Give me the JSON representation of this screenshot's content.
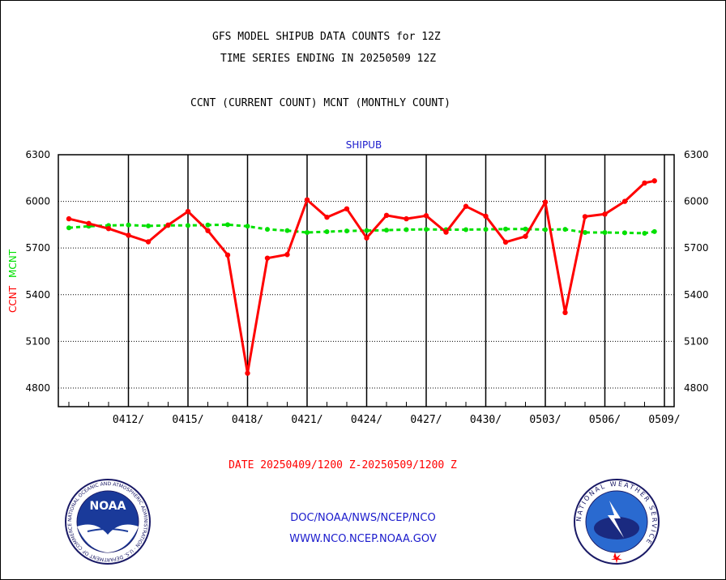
{
  "header": {
    "line1": "GFS MODEL SHIPUB DATA COUNTS for 12Z",
    "line2": "TIME SERIES ENDING IN 20250509 12Z",
    "line3": "CCNT (CURRENT COUNT) MCNT (MONTHLY COUNT)"
  },
  "chart_data": {
    "type": "line",
    "title": "SHIPUB",
    "ylabel_ccnt": "CCNT",
    "ylabel_mcnt": "MCNT",
    "xlabel": "DATE 20250409/1200 Z-20250509/1200 Z",
    "ylim": [
      4680,
      6300
    ],
    "yticks": [
      4800,
      5100,
      5400,
      5700,
      6000,
      6300
    ],
    "xlim": [
      0,
      30
    ],
    "xticks": [
      {
        "x": 3,
        "label": "0412/"
      },
      {
        "x": 6,
        "label": "0415/"
      },
      {
        "x": 9,
        "label": "0418/"
      },
      {
        "x": 12,
        "label": "0421/"
      },
      {
        "x": 15,
        "label": "0424/"
      },
      {
        "x": 18,
        "label": "0427/"
      },
      {
        "x": 21,
        "label": "0430/"
      },
      {
        "x": 24,
        "label": "0503/"
      },
      {
        "x": 27,
        "label": "0506/"
      },
      {
        "x": 30,
        "label": "0509/"
      }
    ],
    "grid": true,
    "colors": {
      "ccnt": "#ff0000",
      "mcnt": "#00e000",
      "title": "#1a1acc"
    },
    "series": [
      {
        "name": "CCNT",
        "x": [
          0,
          1,
          2,
          3,
          4,
          5,
          6,
          7,
          8,
          9,
          10,
          11,
          12,
          13,
          14,
          15,
          16,
          17,
          18,
          19,
          20,
          21,
          22,
          23,
          24,
          25,
          26,
          27,
          28,
          29,
          29.5
        ],
        "values": [
          5888,
          5858,
          5825,
          5782,
          5740,
          5848,
          5935,
          5812,
          5655,
          4895,
          5635,
          5658,
          6010,
          5898,
          5952,
          5765,
          5910,
          5888,
          5908,
          5802,
          5968,
          5905,
          5738,
          5775,
          5995,
          5285,
          5902,
          5918,
          6000,
          6118,
          6132
        ]
      },
      {
        "name": "MCNT",
        "x": [
          0,
          1,
          2,
          3,
          4,
          5,
          6,
          7,
          8,
          9,
          10,
          11,
          12,
          13,
          14,
          15,
          16,
          17,
          18,
          19,
          20,
          21,
          22,
          23,
          24,
          25,
          26,
          27,
          28,
          29,
          29.5
        ],
        "values": [
          5830,
          5840,
          5845,
          5848,
          5842,
          5845,
          5845,
          5848,
          5850,
          5840,
          5820,
          5812,
          5800,
          5805,
          5810,
          5812,
          5815,
          5818,
          5820,
          5818,
          5818,
          5820,
          5822,
          5822,
          5818,
          5820,
          5800,
          5800,
          5798,
          5795,
          5806
        ]
      }
    ]
  },
  "footer": {
    "line1": "DOC/NOAA/NWS/NCEP/NCO",
    "line2": "WWW.NCO.NCEP.NOAA.GOV"
  },
  "logos": {
    "noaa": {
      "word": "NOAA",
      "ring_text": "NATIONAL OCEANIC AND ATMOSPHERIC ADMINISTRATION · U.S. DEPARTMENT OF COMMERCE ·"
    },
    "nws": {
      "ring_text": "NATIONAL WEATHER SERVICE"
    }
  }
}
